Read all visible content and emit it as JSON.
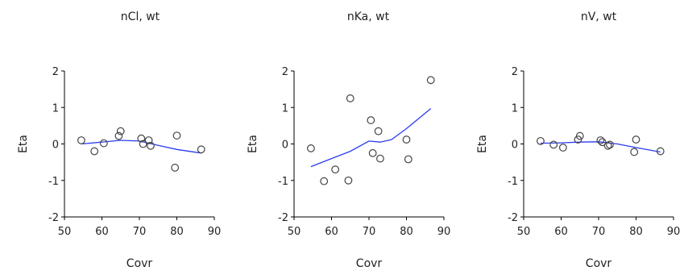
{
  "chart_data": [
    {
      "type": "scatter",
      "title": "nCl, wt",
      "xlabel": "Covr",
      "ylabel": "Eta",
      "xlim": [
        50,
        90
      ],
      "ylim": [
        -2,
        2
      ],
      "xticks": [
        "50",
        "60",
        "70",
        "80",
        "90"
      ],
      "yticks": [
        "2",
        "1",
        "0",
        "-1",
        "-2"
      ],
      "points": [
        {
          "x": 54.5,
          "y": 0.1
        },
        {
          "x": 58.0,
          "y": -0.2
        },
        {
          "x": 60.5,
          "y": 0.02
        },
        {
          "x": 64.5,
          "y": 0.22
        },
        {
          "x": 65.0,
          "y": 0.35
        },
        {
          "x": 70.5,
          "y": 0.15
        },
        {
          "x": 71.0,
          "y": 0.0
        },
        {
          "x": 72.5,
          "y": 0.1
        },
        {
          "x": 73.0,
          "y": -0.05
        },
        {
          "x": 79.5,
          "y": -0.65
        },
        {
          "x": 80.0,
          "y": 0.23
        },
        {
          "x": 86.5,
          "y": -0.15
        }
      ],
      "smooth": [
        {
          "x": 54.5,
          "y": 0.0
        },
        {
          "x": 60,
          "y": 0.05
        },
        {
          "x": 65,
          "y": 0.1
        },
        {
          "x": 70,
          "y": 0.08
        },
        {
          "x": 75,
          "y": -0.04
        },
        {
          "x": 80,
          "y": -0.15
        },
        {
          "x": 86.5,
          "y": -0.25
        }
      ],
      "point_color": "#444444",
      "line_color": "#2b3cf0"
    },
    {
      "type": "scatter",
      "title": "nKa, wt",
      "xlabel": "Covr",
      "ylabel": "Eta",
      "xlim": [
        50,
        90
      ],
      "ylim": [
        -2,
        2
      ],
      "xticks": [
        "50",
        "60",
        "70",
        "80",
        "90"
      ],
      "yticks": [
        "2",
        "1",
        "0",
        "-1",
        "-2"
      ],
      "points": [
        {
          "x": 54.5,
          "y": -0.12
        },
        {
          "x": 58.0,
          "y": -1.02
        },
        {
          "x": 61.0,
          "y": -0.7
        },
        {
          "x": 64.5,
          "y": -1.0
        },
        {
          "x": 65.0,
          "y": 1.25
        },
        {
          "x": 70.5,
          "y": 0.65
        },
        {
          "x": 71.0,
          "y": -0.25
        },
        {
          "x": 72.5,
          "y": 0.35
        },
        {
          "x": 73.0,
          "y": -0.4
        },
        {
          "x": 80.0,
          "y": 0.12
        },
        {
          "x": 80.5,
          "y": -0.42
        },
        {
          "x": 86.5,
          "y": 1.75
        }
      ],
      "smooth": [
        {
          "x": 54.5,
          "y": -0.62
        },
        {
          "x": 60,
          "y": -0.4
        },
        {
          "x": 65,
          "y": -0.2
        },
        {
          "x": 70,
          "y": 0.08
        },
        {
          "x": 73,
          "y": 0.05
        },
        {
          "x": 76,
          "y": 0.12
        },
        {
          "x": 80,
          "y": 0.42
        },
        {
          "x": 86.5,
          "y": 0.97
        }
      ],
      "point_color": "#444444",
      "line_color": "#2b3cf0"
    },
    {
      "type": "scatter",
      "title": "nV, wt",
      "xlabel": "Covr",
      "ylabel": "Eta",
      "xlim": [
        50,
        90
      ],
      "ylim": [
        -2,
        2
      ],
      "xticks": [
        "50",
        "60",
        "70",
        "80",
        "90"
      ],
      "yticks": [
        "2",
        "1",
        "0",
        "-1",
        "-2"
      ],
      "points": [
        {
          "x": 54.5,
          "y": 0.08
        },
        {
          "x": 58.0,
          "y": -0.02
        },
        {
          "x": 60.5,
          "y": -0.1
        },
        {
          "x": 64.5,
          "y": 0.12
        },
        {
          "x": 65.0,
          "y": 0.22
        },
        {
          "x": 70.5,
          "y": 0.1
        },
        {
          "x": 71.0,
          "y": 0.05
        },
        {
          "x": 72.5,
          "y": -0.05
        },
        {
          "x": 73.0,
          "y": -0.02
        },
        {
          "x": 79.5,
          "y": -0.22
        },
        {
          "x": 80.0,
          "y": 0.12
        },
        {
          "x": 86.5,
          "y": -0.2
        }
      ],
      "smooth": [
        {
          "x": 54.5,
          "y": 0.02
        },
        {
          "x": 60,
          "y": 0.03
        },
        {
          "x": 65,
          "y": 0.05
        },
        {
          "x": 70,
          "y": 0.06
        },
        {
          "x": 75,
          "y": 0.0
        },
        {
          "x": 80,
          "y": -0.1
        },
        {
          "x": 86.5,
          "y": -0.22
        }
      ],
      "point_color": "#444444",
      "line_color": "#2b3cf0"
    }
  ]
}
